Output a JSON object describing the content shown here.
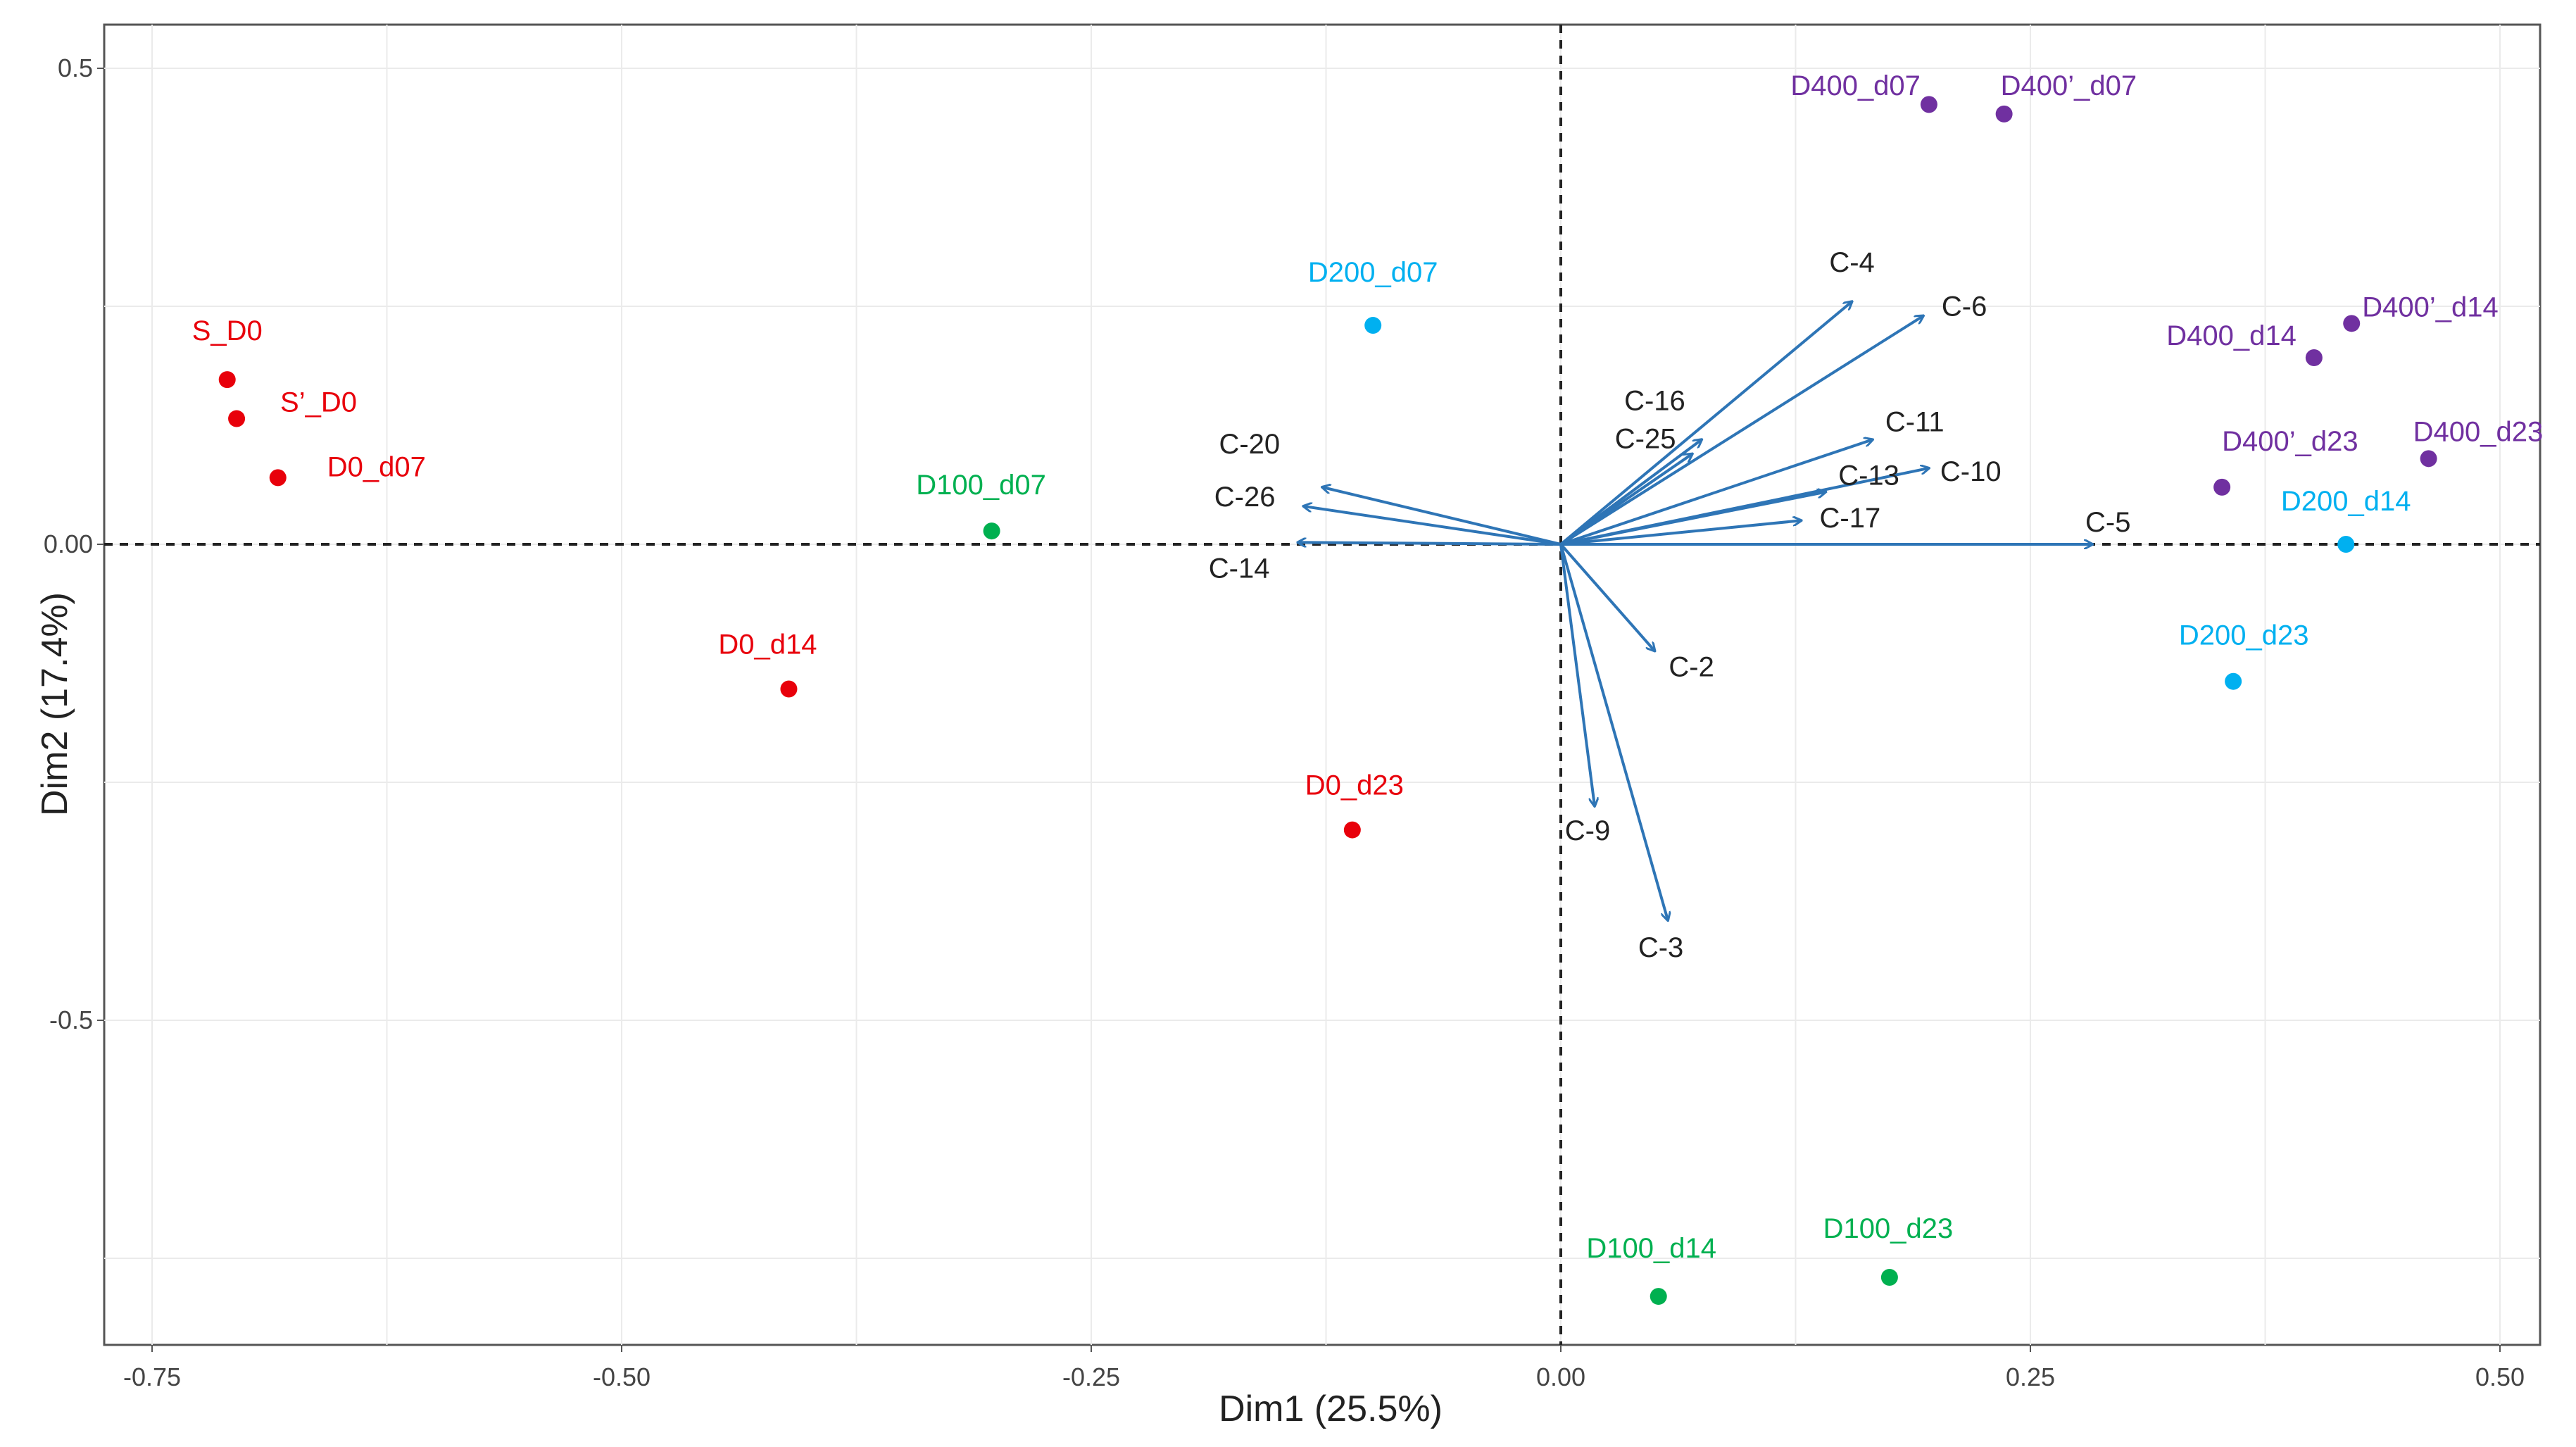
{
  "chart_data": {
    "type": "scatter",
    "subtype": "pca-biplot",
    "title": "",
    "xlabel": "Dim1 (25.5%)",
    "ylabel": "Dim2 (17.4%)",
    "xlim": [
      -0.8,
      0.52
    ],
    "ylim": [
      -0.855,
      0.525
    ],
    "x_ticks": [
      -0.75,
      -0.5,
      -0.25,
      0,
      0.25,
      0.5
    ],
    "x_tick_labels": [
      "-0.75",
      "-0.50",
      "-0.25",
      "0.00",
      "0.25",
      "0.50"
    ],
    "y_ticks": [
      0.5,
      0,
      -0.5
    ],
    "y_tick_labels": [
      "0.5",
      "0.00",
      "-0.5"
    ],
    "grid": true,
    "reference_lines": "dashed at x=0 and y=0",
    "colors": {
      "red": "#e8000b",
      "green": "#00b050",
      "cyan": "#00b0f0",
      "purple": "#7030a0",
      "arrow": "#2e75b6",
      "grid": "#ebebeb"
    },
    "points": [
      {
        "label": "S_D0",
        "x": -0.71,
        "y": 0.173,
        "color": "red"
      },
      {
        "label": "S’_D0",
        "x": -0.705,
        "y": 0.132,
        "color": "red"
      },
      {
        "label": "D0_d07",
        "x": -0.683,
        "y": 0.07,
        "color": "red"
      },
      {
        "label": "D0_d14",
        "x": -0.411,
        "y": -0.152,
        "color": "red"
      },
      {
        "label": "D0_d23",
        "x": -0.111,
        "y": -0.3,
        "color": "red"
      },
      {
        "label": "D100_d07",
        "x": -0.303,
        "y": 0.014,
        "color": "green"
      },
      {
        "label": "D100_d14",
        "x": 0.052,
        "y": -0.79,
        "color": "green"
      },
      {
        "label": "D100_d23",
        "x": 0.175,
        "y": -0.77,
        "color": "green"
      },
      {
        "label": "D200_d07",
        "x": -0.1,
        "y": 0.23,
        "color": "cyan"
      },
      {
        "label": "D200_d14",
        "x": 0.418,
        "y": 0.0,
        "color": "cyan"
      },
      {
        "label": "D200_d23",
        "x": 0.358,
        "y": -0.144,
        "color": "cyan"
      },
      {
        "label": "D400_d07",
        "x": 0.196,
        "y": 0.462,
        "color": "purple"
      },
      {
        "label": "D400’_d07",
        "x": 0.236,
        "y": 0.452,
        "color": "purple"
      },
      {
        "label": "D400_d14",
        "x": 0.401,
        "y": 0.196,
        "color": "purple"
      },
      {
        "label": "D400’_d14",
        "x": 0.421,
        "y": 0.232,
        "color": "purple"
      },
      {
        "label": "D400’_d23",
        "x": 0.352,
        "y": 0.06,
        "color": "purple"
      },
      {
        "label": "D400_d23",
        "x": 0.462,
        "y": 0.09,
        "color": "purple"
      }
    ],
    "variables": [
      {
        "label": "C-4",
        "x": 0.155,
        "y": 0.255
      },
      {
        "label": "C-6",
        "x": 0.193,
        "y": 0.24
      },
      {
        "label": "C-16",
        "x": 0.075,
        "y": 0.11
      },
      {
        "label": "C-25",
        "x": 0.07,
        "y": 0.095
      },
      {
        "label": "C-11",
        "x": 0.166,
        "y": 0.11
      },
      {
        "label": "C-10",
        "x": 0.196,
        "y": 0.08
      },
      {
        "label": "C-13",
        "x": 0.141,
        "y": 0.055
      },
      {
        "label": "C-17",
        "x": 0.128,
        "y": 0.025
      },
      {
        "label": "C-5",
        "x": 0.283,
        "y": 0.0
      },
      {
        "label": "C-20",
        "x": -0.127,
        "y": 0.06
      },
      {
        "label": "C-26",
        "x": -0.137,
        "y": 0.04
      },
      {
        "label": "C-14",
        "x": -0.14,
        "y": 0.002
      },
      {
        "label": "C-2",
        "x": 0.05,
        "y": -0.112
      },
      {
        "label": "C-9",
        "x": 0.018,
        "y": -0.275
      },
      {
        "label": "C-3",
        "x": 0.057,
        "y": -0.395
      }
    ]
  }
}
